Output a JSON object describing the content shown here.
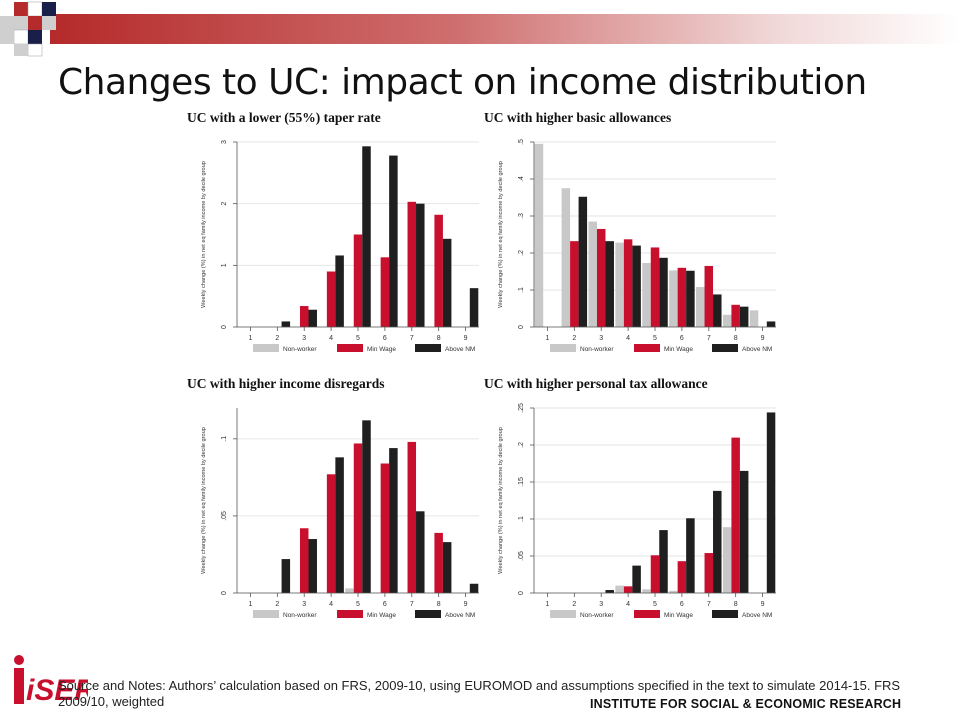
{
  "slide": {
    "title": "Changes to UC: impact on income distribution",
    "footnote": "Source and Notes: Authors’ calculation based on FRS, 2009-10, using EUROMOD and assumptions specified in the text to simulate 2014-15. FRS 2009/10, weighted",
    "institute": "INSTITUTE FOR SOCIAL & ECONOMIC RESEARCH",
    "logo_text": "iSER"
  },
  "colors": {
    "non_worker": "#c8c8c8",
    "min_wage": "#c8102e",
    "above_nmw": "#1f1f1f",
    "accent": "#b52a2a"
  },
  "chart_data": [
    {
      "type": "bar",
      "title": "UC with a lower (55%) taper rate",
      "ylabel": "Weekly change (%) in net eq family income by decile group",
      "categories": [
        "1",
        "2",
        "3",
        "4",
        "5",
        "6",
        "7",
        "8",
        "9"
      ],
      "ylim": [
        0,
        3
      ],
      "yticks": [
        0,
        1,
        2,
        3
      ],
      "ytick_labels": [
        "0",
        "1",
        "2",
        "3"
      ],
      "grid": true,
      "legend_position": "bottom",
      "series": [
        {
          "name": "Non-worker",
          "values": [
            0,
            0,
            0,
            0,
            0,
            0,
            0,
            0,
            0
          ]
        },
        {
          "name": "Min Wage",
          "values": [
            0,
            0,
            0.34,
            0.9,
            1.5,
            1.13,
            2.03,
            1.82,
            0
          ]
        },
        {
          "name": "Above NM",
          "values": [
            0,
            0.09,
            0.28,
            1.16,
            2.93,
            2.78,
            2.0,
            1.43,
            0.63
          ]
        }
      ]
    },
    {
      "type": "bar",
      "title": "UC with higher basic allowances",
      "ylabel": "Weekly change (%) in net eq family income by decile group",
      "categories": [
        "1",
        "2",
        "3",
        "4",
        "5",
        "6",
        "7",
        "8",
        "9"
      ],
      "ylim": [
        0,
        0.5
      ],
      "yticks": [
        0,
        0.1,
        0.2,
        0.3,
        0.4,
        0.5
      ],
      "ytick_labels": [
        "0",
        ".1",
        ".2",
        ".3",
        ".4",
        ".5"
      ],
      "grid": true,
      "legend_position": "bottom",
      "series": [
        {
          "name": "Non-worker",
          "values": [
            0.495,
            0.375,
            0.285,
            0.228,
            0.173,
            0.153,
            0.108,
            0.033,
            0.045
          ]
        },
        {
          "name": "Min Wage",
          "values": [
            0,
            0.232,
            0.265,
            0.237,
            0.215,
            0.16,
            0.165,
            0.06,
            0
          ]
        },
        {
          "name": "Above NM",
          "values": [
            0,
            0.352,
            0.232,
            0.22,
            0.187,
            0.152,
            0.088,
            0.055,
            0.015
          ]
        }
      ]
    },
    {
      "type": "bar",
      "title": "UC with higher income disregards",
      "ylabel": "Weekly change (%) in net eq family income by decile group",
      "categories": [
        "1",
        "2",
        "3",
        "4",
        "5",
        "6",
        "7",
        "8",
        "9"
      ],
      "ylim": [
        0,
        0.12
      ],
      "yticks": [
        0,
        0.05,
        0.1
      ],
      "ytick_labels": [
        "0",
        ".05",
        ".1"
      ],
      "grid": true,
      "legend_position": "bottom",
      "series": [
        {
          "name": "Non-worker",
          "values": [
            0,
            0,
            0,
            0,
            0.003,
            0,
            0,
            0,
            0
          ]
        },
        {
          "name": "Min Wage",
          "values": [
            0,
            0,
            0.042,
            0.077,
            0.097,
            0.084,
            0.098,
            0.039,
            0
          ]
        },
        {
          "name": "Above NM",
          "values": [
            0,
            0.022,
            0.035,
            0.088,
            0.112,
            0.094,
            0.053,
            0.033,
            0.006
          ]
        }
      ]
    },
    {
      "type": "bar",
      "title": "UC with higher personal tax allowance",
      "ylabel": "Weekly change (%) in net eq family income by decile group",
      "categories": [
        "1",
        "2",
        "3",
        "4",
        "5",
        "6",
        "7",
        "8",
        "9"
      ],
      "ylim": [
        0,
        0.25
      ],
      "yticks": [
        0,
        0.05,
        0.1,
        0.15,
        0.2,
        0.25
      ],
      "ytick_labels": [
        "0",
        ".05",
        ".1",
        ".15",
        ".2",
        ".25"
      ],
      "grid": true,
      "legend_position": "bottom",
      "series": [
        {
          "name": "Non-worker",
          "values": [
            0,
            0,
            0,
            0.01,
            0.005,
            0.003,
            0,
            0.089,
            0
          ]
        },
        {
          "name": "Min Wage",
          "values": [
            0,
            0,
            0,
            0.009,
            0.051,
            0.043,
            0.054,
            0.21,
            0
          ]
        },
        {
          "name": "Above NM",
          "values": [
            0,
            0,
            0.004,
            0.037,
            0.085,
            0.101,
            0.138,
            0.165,
            0.244
          ]
        }
      ]
    }
  ]
}
